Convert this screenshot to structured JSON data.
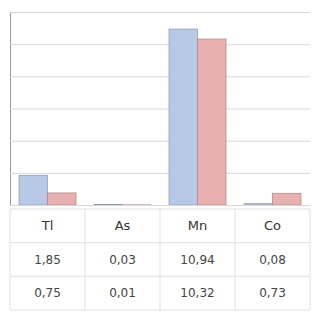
{
  "chart_data": {
    "type": "bar",
    "categories": [
      "Tl",
      "As",
      "Mn",
      "Co"
    ],
    "series": [
      {
        "color": "#b8c9e8",
        "values": [
          1.85,
          0.03,
          10.94,
          0.08
        ],
        "value_labels": [
          "1,85",
          "0,03",
          "10,94",
          "0,08"
        ]
      },
      {
        "color": "#e8b0b0",
        "values": [
          0.75,
          0.01,
          10.32,
          0.73
        ],
        "value_labels": [
          "0,75",
          "0,01",
          "10,32",
          "0,73"
        ]
      }
    ],
    "ylim": [
      0,
      12
    ],
    "yticks": [
      0,
      2,
      4,
      6,
      8,
      10,
      12
    ],
    "grid": true,
    "tick_labels": false
  }
}
